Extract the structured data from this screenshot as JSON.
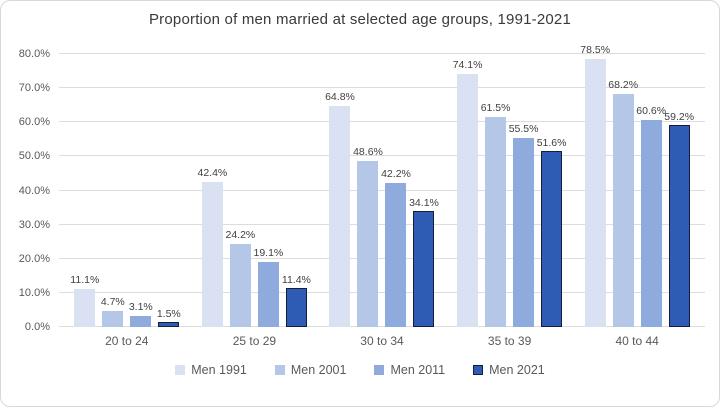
{
  "title": "Proportion of men married at selected age groups, 1991-2021",
  "chart_data": {
    "type": "bar",
    "categories": [
      "20 to 24",
      "25 to 29",
      "30 to 34",
      "35 to 39",
      "40 to 44"
    ],
    "series": [
      {
        "name": "Men 1991",
        "color": "#d9e1f2",
        "values": [
          11.1,
          42.4,
          64.8,
          74.1,
          78.5
        ]
      },
      {
        "name": "Men 2001",
        "color": "#b4c7e7",
        "values": [
          4.7,
          24.2,
          48.6,
          61.5,
          68.2
        ]
      },
      {
        "name": "Men 2011",
        "color": "#8faadc",
        "values": [
          3.1,
          19.1,
          42.2,
          55.5,
          60.6
        ]
      },
      {
        "name": "Men 2021",
        "color": "#2e5cb4",
        "border_color": "#141f38",
        "values": [
          1.5,
          11.4,
          34.1,
          51.6,
          59.2
        ]
      }
    ],
    "data_labels": [
      [
        "11.1%",
        "42.4%",
        "64.8%",
        "74.1%",
        "78.5%"
      ],
      [
        "4.7%",
        "24.2%",
        "48.6%",
        "61.5%",
        "68.2%"
      ],
      [
        "3.1%",
        "19.1%",
        "42.2%",
        "55.5%",
        "60.6%"
      ],
      [
        "1.5%",
        "11.4%",
        "34.1%",
        "51.6%",
        "59.2%"
      ]
    ],
    "ylim": [
      0,
      80
    ],
    "yticks": [
      "0.0%",
      "10.0%",
      "20.0%",
      "30.0%",
      "40.0%",
      "50.0%",
      "60.0%",
      "70.0%",
      "80.0%"
    ],
    "grid": true,
    "legend_position": "bottom"
  },
  "colors": {
    "grid": "#dcdcdc",
    "tick_text": "#595959",
    "label_text": "#404040",
    "title_text": "#3a3a3a",
    "background": "#ffffff",
    "card_border": "#d8d8d8"
  }
}
